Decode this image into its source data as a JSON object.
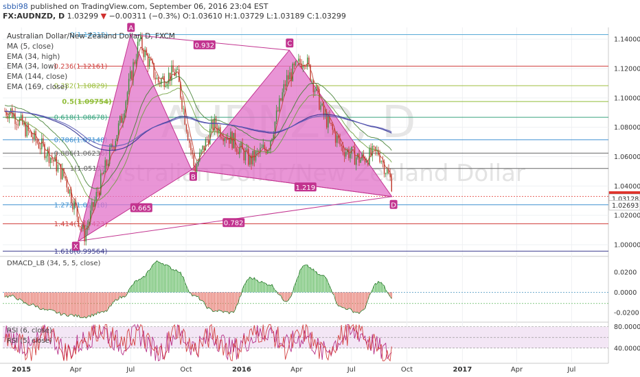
{
  "header": {
    "user": "sbbi98",
    "published": "published on TradingView.com, September 06, 2016 23:04 EST",
    "symbol": "FX:AUDNZD, D",
    "last": "1.03299",
    "change_icon": "down-triangle-icon",
    "change": "−0.00311 (−0.3%)",
    "ohlc": "O:1.03610 H:1.03729 L:1.03189 C:1.03299"
  },
  "legend": {
    "title": "Australian Dollar/New Zealand Dollar, D, FXCM",
    "items": [
      "MA (5, close)",
      "EMA (34, high)",
      "EMA (34, low)",
      "EMA (144, close)",
      "EMA (169, close)"
    ]
  },
  "watermark": {
    "symbol": "AUDNZD, D",
    "name": "Australian Dollar/New Zealand Dollar"
  },
  "colors": {
    "pattern_fill": "#e271c8",
    "pattern_label": "#c2338f",
    "price_up": "#3a8f3a",
    "price_down": "#c0392b",
    "current_price": "#e0332b",
    "hist_pos": "#5cb85c",
    "hist_neg": "#e57368",
    "rsi_line": "#b01e7e",
    "stoch_line": "#d0302f"
  },
  "chart_data": [
    {
      "type": "line",
      "title": "Australian Dollar/New Zealand Dollar, D, FXCM",
      "x": [
        "2014-12",
        "2015-01",
        "2015-02",
        "2015-03",
        "2015-04",
        "2015-05",
        "2015-06",
        "2015-07",
        "2015-08",
        "2015-09",
        "2015-10",
        "2015-11",
        "2015-12",
        "2016-01",
        "2016-02",
        "2016-03",
        "2016-04",
        "2016-05",
        "2016-06",
        "2016-07",
        "2016-08",
        "2016-09"
      ],
      "series": [
        {
          "values": [
            1.091,
            1.075,
            1.062,
            1.045,
            1.006,
            1.046,
            1.085,
            1.139,
            1.111,
            1.118,
            1.051,
            1.082,
            1.072,
            1.057,
            1.068,
            1.112,
            1.128,
            1.089,
            1.066,
            1.058,
            1.063,
            1.033
          ]
        }
      ],
      "x_tick_labels": [
        "2015",
        "Apr",
        "Jul",
        "Oct",
        "2016",
        "Apr",
        "Jul",
        "Oct",
        "2017",
        "Apr",
        "Jul"
      ],
      "y_tick_labels": [
        "1.14000",
        "1.12000",
        "1.10000",
        "1.08000",
        "1.06000",
        "1.04000",
        "1.02000",
        "1.00000"
      ],
      "ylim": [
        0.993,
        1.148
      ],
      "price_markers": [
        {
          "label": "1.03299",
          "value": 1.03299,
          "current": true
        },
        {
          "label": "1.03128",
          "value": 1.03128
        },
        {
          "label": "1.02693",
          "value": 1.02693
        }
      ],
      "fib_levels": [
        {
          "label": "0(1.14312)",
          "value": 1.14312,
          "color": "#56a9d6"
        },
        {
          "label": "0.236(1.12161)",
          "value": 1.12161,
          "color": "#d0413e"
        },
        {
          "label": "0.382(1.10829)",
          "value": 1.10829,
          "color": "#9cbd3c"
        },
        {
          "label": "0.5(1.09754)",
          "value": 1.09754,
          "color": "#8fbc36"
        },
        {
          "label": "0.618(1.08678)",
          "value": 1.08678,
          "color": "#37a37d"
        },
        {
          "label": "0.786(1.07148)",
          "value": 1.07148,
          "color": "#3c8fd0"
        },
        {
          "label": "0.886(1.06236)",
          "value": 1.06236,
          "color": "#666666"
        },
        {
          "label": "1(1.05197)",
          "value": 1.05197,
          "color": "#666666"
        },
        {
          "label": "1.272(1.02718)",
          "value": 1.02718,
          "color": "#3c8fd0"
        },
        {
          "label": "1.414(1.01423)",
          "value": 1.01423,
          "color": "#d0413e"
        },
        {
          "label": "1.618(0.99564)",
          "value": 0.99564,
          "color": "#3d3d8f"
        }
      ],
      "pattern_points": [
        {
          "label": "X",
          "date": "2015-04-05",
          "value": 1.0025
        },
        {
          "label": "A",
          "date": "2015-07-01",
          "value": 1.1431
        },
        {
          "label": "B",
          "date": "2015-10-10",
          "value": 1.051
        },
        {
          "label": "C",
          "date": "2016-03-20",
          "value": 1.1325
        },
        {
          "label": "D",
          "date": "2016-09-06",
          "value": 1.0328
        }
      ],
      "pattern_ratios": [
        "0.932",
        "0.665",
        "1.219",
        "0.782"
      ]
    },
    {
      "type": "bar",
      "title": "DMACD_LB (34, 5, 5, close)",
      "y_tick_labels": [
        "0.0200",
        "0.0000",
        "-0.0200"
      ],
      "ylim": [
        -0.028,
        0.034
      ],
      "values": [
        -0.004,
        -0.012,
        -0.018,
        -0.022,
        -0.024,
        -0.02,
        -0.005,
        0.012,
        0.03,
        0.022,
        -0.004,
        -0.018,
        -0.02,
        0.014,
        0.008,
        -0.008,
        0.026,
        0.016,
        -0.015,
        -0.02,
        0.01,
        -0.012
      ]
    },
    {
      "type": "line",
      "title": "RSI (6, close)",
      "series": [
        {
          "name": "RSI (6, close)",
          "values": [
            62,
            38,
            70,
            30,
            55,
            76,
            45,
            68,
            28,
            72,
            40,
            64,
            35,
            58,
            74,
            42,
            66,
            30,
            60,
            70,
            38,
            22
          ]
        },
        {
          "name": "RSI (5, close)",
          "values": [
            58,
            34,
            75,
            26,
            60,
            80,
            40,
            72,
            24,
            76,
            36,
            68,
            30,
            62,
            78,
            38,
            70,
            26,
            64,
            74,
            34,
            18
          ]
        }
      ],
      "y_tick_labels": [
        "80.0000",
        "40.0000"
      ],
      "ylim": [
        14,
        86
      ]
    }
  ]
}
